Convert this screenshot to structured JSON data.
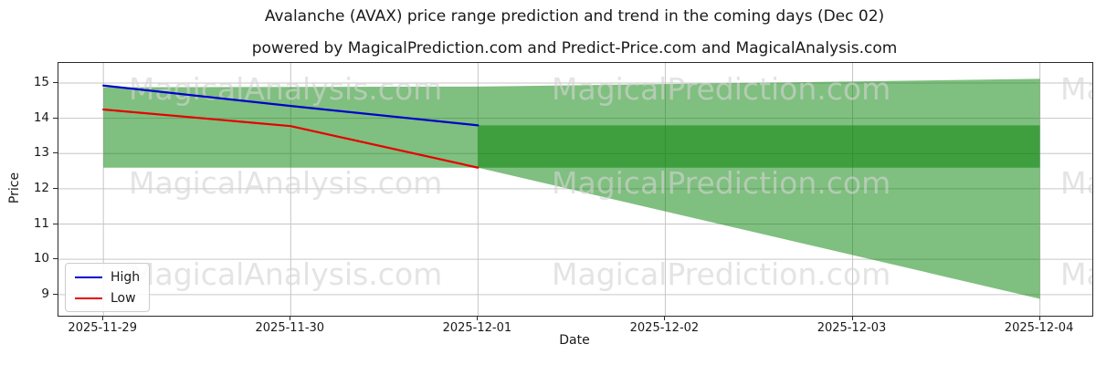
{
  "title": "Avalanche (AVAX) price range prediction and trend in the coming days (Dec 02)",
  "subtitle": "powered by MagicalPrediction.com and Predict-Price.com and MagicalAnalysis.com",
  "watermarks": {
    "column_texts": [
      "MagicalAnalysis.com",
      "MagicalPrediction.com",
      "MagicalAnalysis.com"
    ],
    "rows": 3
  },
  "legend": {
    "entries": [
      {
        "label": "High",
        "color": "#0000cc"
      },
      {
        "label": "Low",
        "color": "#e60000"
      }
    ]
  },
  "chart_data": {
    "type": "line",
    "title": "Avalanche (AVAX) price range prediction and trend in the coming days (Dec 02)",
    "xlabel": "Date",
    "ylabel": "Price",
    "dates": [
      "2025-11-29",
      "2025-11-30",
      "2025-12-01",
      "2025-12-02",
      "2025-12-03",
      "2025-12-04"
    ],
    "yticks": [
      9,
      10,
      11,
      12,
      13,
      14,
      15
    ],
    "ylim": [
      8.4,
      15.57
    ],
    "xlim_idx": [
      -0.24,
      5.28
    ],
    "grid": true,
    "legend_position": "lower left",
    "series": [
      {
        "name": "High",
        "color": "#0000cc",
        "x_idx": [
          0,
          1,
          2
        ],
        "values": [
          14.93,
          14.35,
          13.8
        ]
      },
      {
        "name": "Low",
        "color": "#e60000",
        "x_idx": [
          0,
          1,
          2
        ],
        "values": [
          14.25,
          13.78,
          12.6
        ]
      }
    ],
    "bands": [
      {
        "name": "predicted-range-band",
        "fill": "#008000",
        "opacity": 0.5,
        "x_idx": [
          0,
          2,
          5
        ],
        "top": [
          14.88,
          14.9,
          15.12
        ],
        "bottom": [
          12.6,
          12.6,
          8.88
        ]
      },
      {
        "name": "predicted-core-band",
        "fill": "#008000",
        "opacity": 0.5,
        "x_idx": [
          2,
          5
        ],
        "top": [
          13.8,
          13.8
        ],
        "bottom": [
          12.6,
          12.6
        ]
      }
    ]
  }
}
